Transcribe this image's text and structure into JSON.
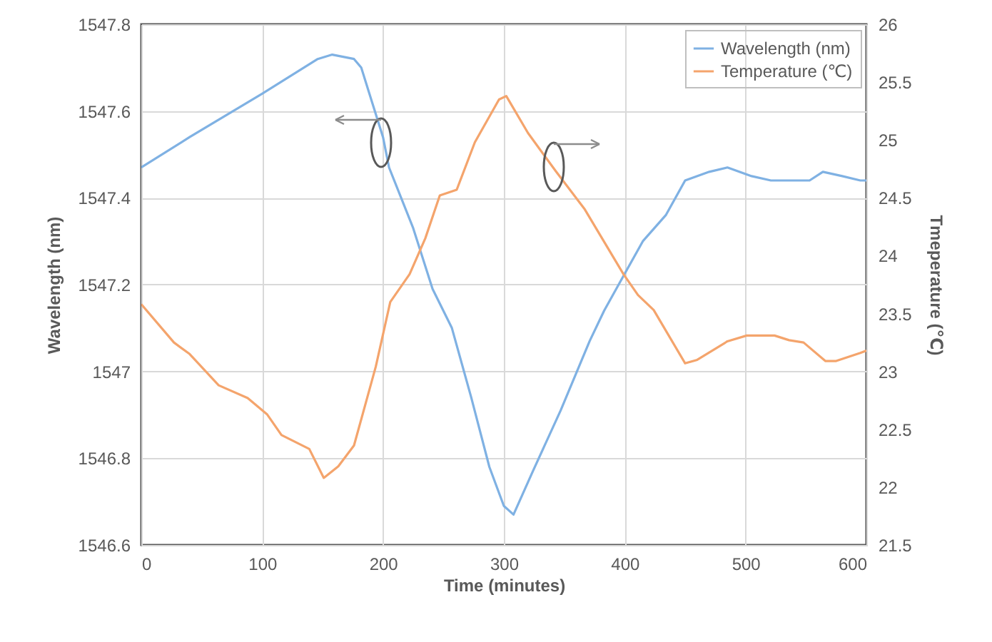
{
  "chart_data": {
    "type": "line",
    "xlabel": "Time (minutes)",
    "ylabel": "Wavelength (nm)",
    "y2label": "Tmeperature  (℃)",
    "xlim": [
      0,
      600
    ],
    "xticks": [
      0,
      100,
      200,
      300,
      400,
      500,
      600
    ],
    "ylim": [
      1546.6,
      1547.8
    ],
    "yticks": [
      1546.6,
      1546.8,
      1547,
      1547.2,
      1547.4,
      1547.6,
      1547.8
    ],
    "y2lim": [
      21.5,
      26
    ],
    "y2ticks": [
      21.5,
      22,
      22.5,
      23,
      23.5,
      24,
      24.5,
      25,
      25.5,
      26
    ],
    "grid": true,
    "legend": "top right",
    "line_style": "solid",
    "marker": "none",
    "series": [
      {
        "name": "Wavelength (nm)",
        "color": "#7fb1e3",
        "x": [
          0,
          40,
          100,
          146,
          158,
          176,
          182,
          200,
          205,
          225,
          241,
          257,
          273,
          288,
          300,
          308,
          324,
          347,
          371,
          383,
          399,
          415,
          434,
          450,
          470,
          485,
          505,
          521,
          537,
          553,
          564,
          580,
          595,
          600
        ],
        "values": [
          1547.47,
          1547.54,
          1547.64,
          1547.72,
          1547.73,
          1547.72,
          1547.7,
          1547.54,
          1547.47,
          1547.33,
          1547.19,
          1547.1,
          1546.94,
          1546.78,
          1546.69,
          1546.67,
          1546.77,
          1546.91,
          1547.07,
          1547.14,
          1547.22,
          1547.3,
          1547.36,
          1547.44,
          1547.46,
          1547.47,
          1547.45,
          1547.44,
          1547.44,
          1547.44,
          1547.46,
          1547.45,
          1547.44,
          1547.44
        ]
      },
      {
        "name": "Temperature (℃)",
        "color": "#f4a46c",
        "axis": "y2",
        "x": [
          0,
          27,
          40,
          64,
          88,
          104,
          116,
          139,
          151,
          163,
          176,
          194,
          206,
          222,
          235,
          247,
          261,
          276,
          296,
          302,
          320,
          343,
          367,
          399,
          411,
          424,
          450,
          460,
          485,
          501,
          524,
          536,
          548,
          566,
          575,
          595,
          600
        ],
        "values": [
          23.58,
          23.25,
          23.15,
          22.88,
          22.77,
          22.63,
          22.45,
          22.33,
          22.08,
          22.18,
          22.36,
          23.04,
          23.6,
          23.84,
          24.15,
          24.52,
          24.57,
          24.98,
          25.35,
          25.38,
          25.06,
          24.73,
          24.4,
          23.84,
          23.66,
          23.53,
          23.07,
          23.1,
          23.26,
          23.31,
          23.31,
          23.27,
          23.25,
          23.09,
          23.09,
          23.16,
          23.18
        ]
      }
    ]
  }
}
